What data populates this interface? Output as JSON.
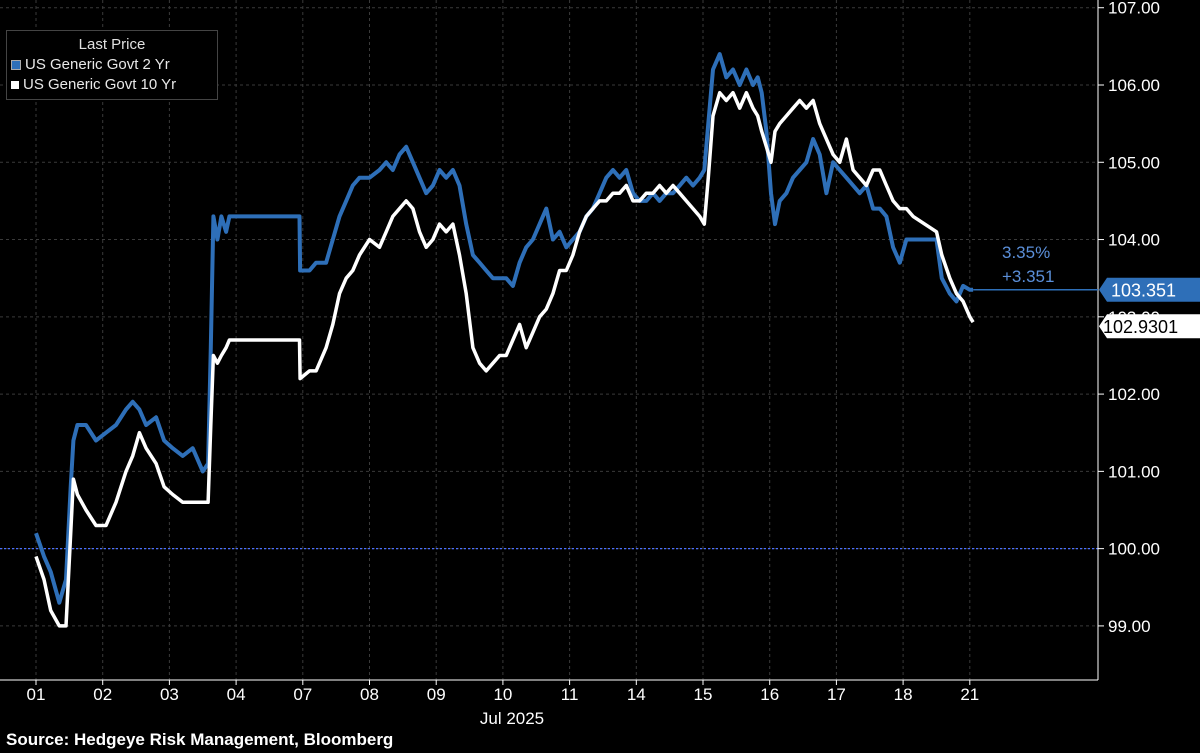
{
  "source": "Source: Hedgeye Risk Management, Bloomberg",
  "legend": {
    "title": "Last Price",
    "items": [
      "US Generic Govt 2 Yr",
      "US Generic Govt 10 Yr"
    ]
  },
  "colors": {
    "s2": "#2e6fb8",
    "s10": "#ffffff",
    "background": "#000000",
    "baseline": "#4a6fff"
  },
  "annotation": {
    "pct": "3.35%",
    "chg": "+3.351"
  },
  "chart_data": {
    "type": "line",
    "title": "",
    "xlabel": "Jul 2025",
    "ylabel": "",
    "x": [
      "01",
      "02",
      "03",
      "04",
      "07",
      "08",
      "09",
      "10",
      "11",
      "14",
      "15",
      "16",
      "17",
      "18",
      "21"
    ],
    "ylim": [
      98.3,
      107.1
    ],
    "yticks": [
      "99.00",
      "100.00",
      "101.00",
      "102.00",
      "103.00",
      "104.00",
      "105.00",
      "106.00",
      "107.00"
    ],
    "baseline": 100.0,
    "last_values": {
      "s2": "103.351",
      "s10": "102.9301"
    },
    "series": [
      {
        "name": "US Generic Govt 2 Yr",
        "key": "s2",
        "values": [
          [
            0.0,
            100.2
          ],
          [
            0.12,
            99.9
          ],
          [
            0.22,
            99.7
          ],
          [
            0.35,
            99.3
          ],
          [
            0.45,
            99.6
          ],
          [
            0.52,
            100.8
          ],
          [
            0.56,
            101.4
          ],
          [
            0.62,
            101.6
          ],
          [
            0.75,
            101.6
          ],
          [
            0.9,
            101.4
          ],
          [
            1.05,
            101.5
          ],
          [
            1.2,
            101.6
          ],
          [
            1.35,
            101.8
          ],
          [
            1.45,
            101.9
          ],
          [
            1.55,
            101.8
          ],
          [
            1.65,
            101.6
          ],
          [
            1.8,
            101.7
          ],
          [
            1.92,
            101.4
          ],
          [
            2.05,
            101.3
          ],
          [
            2.2,
            101.2
          ],
          [
            2.35,
            101.3
          ],
          [
            2.5,
            101.0
          ],
          [
            2.58,
            101.1
          ],
          [
            2.62,
            102.6
          ],
          [
            2.66,
            104.3
          ],
          [
            2.72,
            104.0
          ],
          [
            2.78,
            104.3
          ],
          [
            2.85,
            104.1
          ],
          [
            2.9,
            104.3
          ],
          [
            3.95,
            104.3
          ],
          [
            3.96,
            103.6
          ],
          [
            4.1,
            103.6
          ],
          [
            4.2,
            103.7
          ],
          [
            4.35,
            103.7
          ],
          [
            4.45,
            104.0
          ],
          [
            4.55,
            104.3
          ],
          [
            4.65,
            104.5
          ],
          [
            4.75,
            104.7
          ],
          [
            4.85,
            104.8
          ],
          [
            5.0,
            104.8
          ],
          [
            5.15,
            104.9
          ],
          [
            5.25,
            105.0
          ],
          [
            5.35,
            104.9
          ],
          [
            5.45,
            105.1
          ],
          [
            5.55,
            105.2
          ],
          [
            5.65,
            105.0
          ],
          [
            5.75,
            104.8
          ],
          [
            5.85,
            104.6
          ],
          [
            5.95,
            104.7
          ],
          [
            6.05,
            104.9
          ],
          [
            6.15,
            104.8
          ],
          [
            6.25,
            104.9
          ],
          [
            6.35,
            104.7
          ],
          [
            6.45,
            104.2
          ],
          [
            6.55,
            103.8
          ],
          [
            6.65,
            103.7
          ],
          [
            6.75,
            103.6
          ],
          [
            6.85,
            103.5
          ],
          [
            6.95,
            103.5
          ],
          [
            7.05,
            103.5
          ],
          [
            7.15,
            103.4
          ],
          [
            7.25,
            103.7
          ],
          [
            7.35,
            103.9
          ],
          [
            7.45,
            104.0
          ],
          [
            7.55,
            104.2
          ],
          [
            7.65,
            104.4
          ],
          [
            7.75,
            104.0
          ],
          [
            7.85,
            104.1
          ],
          [
            7.95,
            103.9
          ],
          [
            8.05,
            104.0
          ],
          [
            8.15,
            104.1
          ],
          [
            8.25,
            104.3
          ],
          [
            8.35,
            104.4
          ],
          [
            8.45,
            104.6
          ],
          [
            8.55,
            104.8
          ],
          [
            8.65,
            104.9
          ],
          [
            8.75,
            104.8
          ],
          [
            8.85,
            104.9
          ],
          [
            8.95,
            104.6
          ],
          [
            9.05,
            104.5
          ],
          [
            9.15,
            104.5
          ],
          [
            9.25,
            104.6
          ],
          [
            9.35,
            104.5
          ],
          [
            9.45,
            104.6
          ],
          [
            9.55,
            104.6
          ],
          [
            9.65,
            104.7
          ],
          [
            9.75,
            104.8
          ],
          [
            9.85,
            104.7
          ],
          [
            9.95,
            104.8
          ],
          [
            10.02,
            104.9
          ],
          [
            10.08,
            105.5
          ],
          [
            10.15,
            106.2
          ],
          [
            10.25,
            106.4
          ],
          [
            10.35,
            106.1
          ],
          [
            10.45,
            106.2
          ],
          [
            10.55,
            106.0
          ],
          [
            10.65,
            106.2
          ],
          [
            10.75,
            106.0
          ],
          [
            10.82,
            106.1
          ],
          [
            10.88,
            105.9
          ],
          [
            10.95,
            105.4
          ],
          [
            11.02,
            104.6
          ],
          [
            11.08,
            104.2
          ],
          [
            11.15,
            104.5
          ],
          [
            11.25,
            104.6
          ],
          [
            11.35,
            104.8
          ],
          [
            11.45,
            104.9
          ],
          [
            11.55,
            105.0
          ],
          [
            11.65,
            105.3
          ],
          [
            11.75,
            105.1
          ],
          [
            11.85,
            104.6
          ],
          [
            11.95,
            105.0
          ],
          [
            12.05,
            104.9
          ],
          [
            12.15,
            104.8
          ],
          [
            12.25,
            104.7
          ],
          [
            12.35,
            104.6
          ],
          [
            12.45,
            104.7
          ],
          [
            12.55,
            104.4
          ],
          [
            12.65,
            104.4
          ],
          [
            12.75,
            104.3
          ],
          [
            12.85,
            103.9
          ],
          [
            12.95,
            103.7
          ],
          [
            13.05,
            104.0
          ],
          [
            13.15,
            104.0
          ],
          [
            13.5,
            104.0
          ],
          [
            13.58,
            103.5
          ],
          [
            13.7,
            103.3
          ],
          [
            13.8,
            103.2
          ],
          [
            13.9,
            103.4
          ],
          [
            14.0,
            103.35
          ],
          [
            14.05,
            103.351
          ]
        ]
      },
      {
        "name": "US Generic Govt 10 Yr",
        "key": "s10",
        "values": [
          [
            0.0,
            99.9
          ],
          [
            0.12,
            99.6
          ],
          [
            0.22,
            99.2
          ],
          [
            0.35,
            99.0
          ],
          [
            0.45,
            99.0
          ],
          [
            0.52,
            100.2
          ],
          [
            0.56,
            100.9
          ],
          [
            0.62,
            100.7
          ],
          [
            0.75,
            100.5
          ],
          [
            0.9,
            100.3
          ],
          [
            1.05,
            100.3
          ],
          [
            1.2,
            100.6
          ],
          [
            1.35,
            101.0
          ],
          [
            1.45,
            101.2
          ],
          [
            1.55,
            101.5
          ],
          [
            1.65,
            101.3
          ],
          [
            1.8,
            101.1
          ],
          [
            1.92,
            100.8
          ],
          [
            2.05,
            100.7
          ],
          [
            2.2,
            100.6
          ],
          [
            2.35,
            100.6
          ],
          [
            2.5,
            100.6
          ],
          [
            2.58,
            100.6
          ],
          [
            2.62,
            101.6
          ],
          [
            2.66,
            102.5
          ],
          [
            2.72,
            102.4
          ],
          [
            2.78,
            102.5
          ],
          [
            2.85,
            102.6
          ],
          [
            2.9,
            102.7
          ],
          [
            3.95,
            102.7
          ],
          [
            3.96,
            102.2
          ],
          [
            4.1,
            102.3
          ],
          [
            4.2,
            102.3
          ],
          [
            4.35,
            102.6
          ],
          [
            4.45,
            102.9
          ],
          [
            4.55,
            103.3
          ],
          [
            4.65,
            103.5
          ],
          [
            4.75,
            103.6
          ],
          [
            4.85,
            103.8
          ],
          [
            5.0,
            104.0
          ],
          [
            5.15,
            103.9
          ],
          [
            5.25,
            104.1
          ],
          [
            5.35,
            104.3
          ],
          [
            5.45,
            104.4
          ],
          [
            5.55,
            104.5
          ],
          [
            5.65,
            104.4
          ],
          [
            5.75,
            104.1
          ],
          [
            5.85,
            103.9
          ],
          [
            5.95,
            104.0
          ],
          [
            6.05,
            104.2
          ],
          [
            6.15,
            104.1
          ],
          [
            6.25,
            104.2
          ],
          [
            6.35,
            103.8
          ],
          [
            6.45,
            103.3
          ],
          [
            6.55,
            102.6
          ],
          [
            6.65,
            102.4
          ],
          [
            6.75,
            102.3
          ],
          [
            6.85,
            102.4
          ],
          [
            6.95,
            102.5
          ],
          [
            7.05,
            102.5
          ],
          [
            7.15,
            102.7
          ],
          [
            7.25,
            102.9
          ],
          [
            7.35,
            102.6
          ],
          [
            7.45,
            102.8
          ],
          [
            7.55,
            103.0
          ],
          [
            7.65,
            103.1
          ],
          [
            7.75,
            103.3
          ],
          [
            7.85,
            103.6
          ],
          [
            7.95,
            103.6
          ],
          [
            8.05,
            103.8
          ],
          [
            8.15,
            104.1
          ],
          [
            8.25,
            104.3
          ],
          [
            8.35,
            104.4
          ],
          [
            8.45,
            104.5
          ],
          [
            8.55,
            104.5
          ],
          [
            8.65,
            104.6
          ],
          [
            8.75,
            104.6
          ],
          [
            8.85,
            104.7
          ],
          [
            8.95,
            104.5
          ],
          [
            9.05,
            104.5
          ],
          [
            9.15,
            104.6
          ],
          [
            9.25,
            104.6
          ],
          [
            9.35,
            104.7
          ],
          [
            9.45,
            104.6
          ],
          [
            9.55,
            104.7
          ],
          [
            9.65,
            104.6
          ],
          [
            9.75,
            104.5
          ],
          [
            9.85,
            104.4
          ],
          [
            9.95,
            104.3
          ],
          [
            10.02,
            104.2
          ],
          [
            10.08,
            104.8
          ],
          [
            10.15,
            105.6
          ],
          [
            10.25,
            105.9
          ],
          [
            10.35,
            105.8
          ],
          [
            10.45,
            105.9
          ],
          [
            10.55,
            105.7
          ],
          [
            10.65,
            105.9
          ],
          [
            10.75,
            105.7
          ],
          [
            10.82,
            105.6
          ],
          [
            10.88,
            105.4
          ],
          [
            10.95,
            105.2
          ],
          [
            11.02,
            105.0
          ],
          [
            11.08,
            105.4
          ],
          [
            11.15,
            105.5
          ],
          [
            11.25,
            105.6
          ],
          [
            11.35,
            105.7
          ],
          [
            11.45,
            105.8
          ],
          [
            11.55,
            105.7
          ],
          [
            11.65,
            105.8
          ],
          [
            11.75,
            105.5
          ],
          [
            11.85,
            105.3
          ],
          [
            11.95,
            105.1
          ],
          [
            12.05,
            105.0
          ],
          [
            12.15,
            105.3
          ],
          [
            12.25,
            104.9
          ],
          [
            12.35,
            104.8
          ],
          [
            12.45,
            104.7
          ],
          [
            12.55,
            104.9
          ],
          [
            12.65,
            104.9
          ],
          [
            12.75,
            104.7
          ],
          [
            12.85,
            104.5
          ],
          [
            12.95,
            104.4
          ],
          [
            13.05,
            104.4
          ],
          [
            13.15,
            104.3
          ],
          [
            13.5,
            104.1
          ],
          [
            13.58,
            103.8
          ],
          [
            13.7,
            103.5
          ],
          [
            13.8,
            103.3
          ],
          [
            13.9,
            103.2
          ],
          [
            14.0,
            103.0
          ],
          [
            14.05,
            102.9301
          ]
        ]
      }
    ]
  }
}
